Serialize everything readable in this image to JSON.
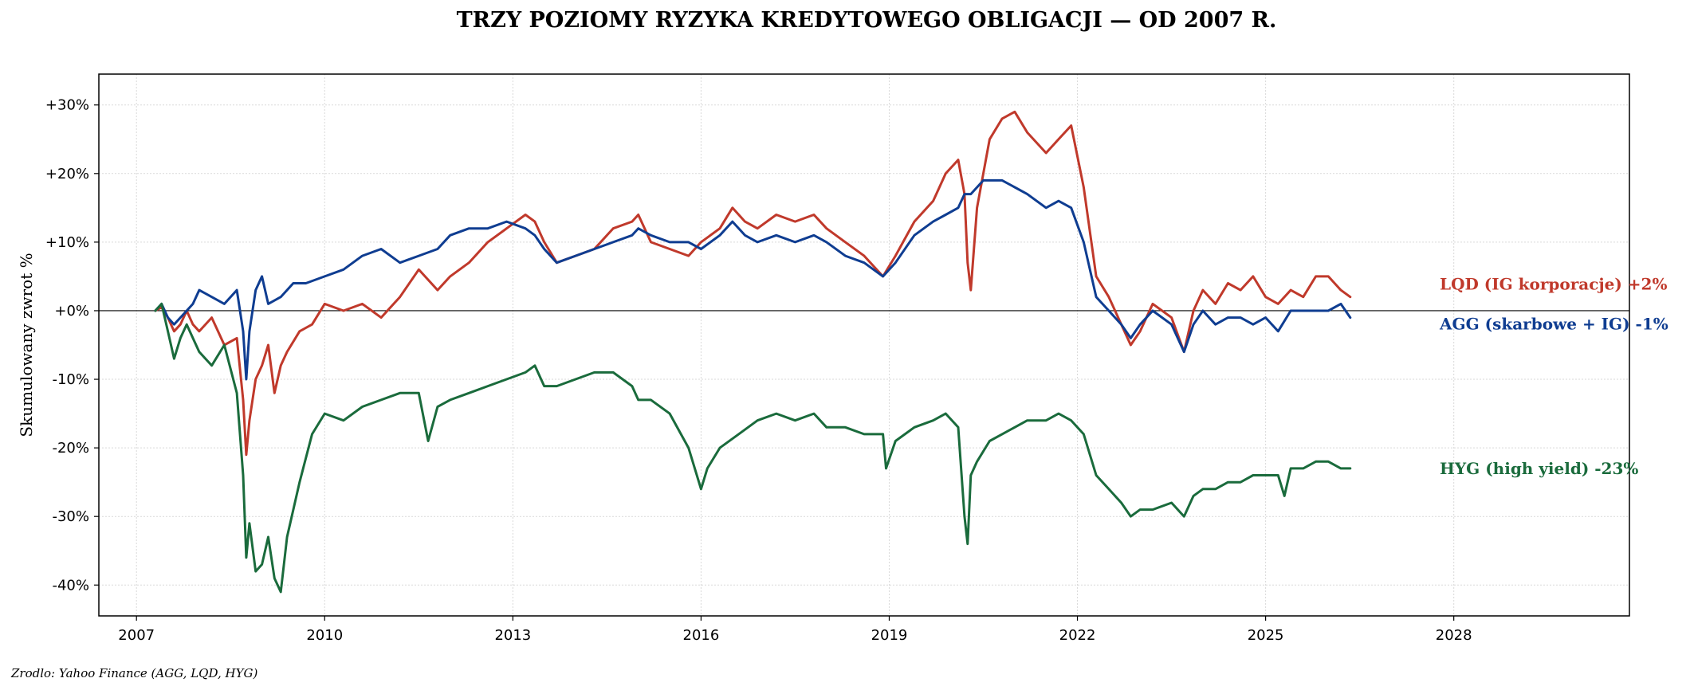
{
  "chart_data": {
    "type": "line",
    "title": "TRZY POZIOMY RYZYKA KREDYTOWEGO OBLIGACJI — OD 2007 R.",
    "ylabel": "Skumulowany zwrot %",
    "xlabel": "",
    "xlim": [
      2006.4,
      2030.8
    ],
    "ylim": [
      -44.5,
      34.5
    ],
    "x_ticks": [
      2007,
      2010,
      2013,
      2016,
      2019,
      2022,
      2025,
      2028
    ],
    "x_tick_labels": [
      "2007",
      "2010",
      "2013",
      "2016",
      "2019",
      "2022",
      "2025",
      "2028"
    ],
    "y_ticks": [
      30,
      20,
      10,
      0,
      -10,
      -20,
      -30,
      -40
    ],
    "y_tick_labels": [
      "+30%",
      "+20%",
      "+10%",
      "+0%",
      "-10%",
      "-20%",
      "-30%",
      "-40%"
    ],
    "grid": true,
    "zero_line": true,
    "series": [
      {
        "name": "LQD",
        "end_label": "LQD (IG korporacje)  +2%",
        "color": "#c0392b",
        "x": [
          2007.3,
          2007.4,
          2007.5,
          2007.6,
          2007.7,
          2007.8,
          2007.9,
          2008.0,
          2008.2,
          2008.4,
          2008.6,
          2008.7,
          2008.75,
          2008.8,
          2008.9,
          2009.0,
          2009.1,
          2009.2,
          2009.3,
          2009.4,
          2009.6,
          2009.8,
          2010.0,
          2010.3,
          2010.6,
          2010.9,
          2011.2,
          2011.5,
          2011.8,
          2012.0,
          2012.3,
          2012.6,
          2012.9,
          2013.2,
          2013.35,
          2013.5,
          2013.7,
          2014.0,
          2014.3,
          2014.6,
          2014.9,
          2015.0,
          2015.2,
          2015.5,
          2015.8,
          2016.0,
          2016.3,
          2016.5,
          2016.7,
          2016.9,
          2017.2,
          2017.5,
          2017.8,
          2018.0,
          2018.3,
          2018.6,
          2018.9,
          2019.1,
          2019.4,
          2019.7,
          2019.9,
          2020.1,
          2020.2,
          2020.25,
          2020.3,
          2020.4,
          2020.6,
          2020.8,
          2021.0,
          2021.2,
          2021.5,
          2021.7,
          2021.9,
          2022.1,
          2022.3,
          2022.5,
          2022.7,
          2022.85,
          2023.0,
          2023.2,
          2023.5,
          2023.7,
          2023.85,
          2024.0,
          2024.2,
          2024.4,
          2024.6,
          2024.8,
          2025.0,
          2025.2,
          2025.4,
          2025.6,
          2025.8,
          2026.0,
          2026.2,
          2026.35
        ],
        "y": [
          0,
          0.5,
          -1,
          -3,
          -2,
          0,
          -2,
          -3,
          -1,
          -5,
          -4,
          -13,
          -21,
          -16,
          -10,
          -8,
          -5,
          -12,
          -8,
          -6,
          -3,
          -2,
          1,
          0,
          1,
          -1,
          2,
          6,
          3,
          5,
          7,
          10,
          12,
          14,
          13,
          10,
          7,
          8,
          9,
          12,
          13,
          14,
          10,
          9,
          8,
          10,
          12,
          15,
          13,
          12,
          14,
          13,
          14,
          12,
          10,
          8,
          5,
          8,
          13,
          16,
          20,
          22,
          17,
          7,
          3,
          15,
          25,
          28,
          29,
          26,
          23,
          25,
          27,
          18,
          5,
          2,
          -2,
          -5,
          -3,
          1,
          -1,
          -6,
          0,
          3,
          1,
          4,
          3,
          5,
          2,
          1,
          3,
          2,
          5,
          5,
          3,
          2
        ]
      },
      {
        "name": "AGG",
        "end_label": "AGG (skarbowe + IG)  -1%",
        "color": "#0f3d91",
        "x": [
          2007.3,
          2007.4,
          2007.5,
          2007.6,
          2007.7,
          2007.8,
          2007.9,
          2008.0,
          2008.2,
          2008.4,
          2008.6,
          2008.7,
          2008.75,
          2008.8,
          2008.9,
          2009.0,
          2009.1,
          2009.3,
          2009.5,
          2009.7,
          2010.0,
          2010.3,
          2010.6,
          2010.9,
          2011.2,
          2011.5,
          2011.8,
          2012.0,
          2012.3,
          2012.6,
          2012.9,
          2013.2,
          2013.35,
          2013.5,
          2013.7,
          2014.0,
          2014.3,
          2014.6,
          2014.9,
          2015.0,
          2015.2,
          2015.5,
          2015.8,
          2016.0,
          2016.3,
          2016.5,
          2016.7,
          2016.9,
          2017.2,
          2017.5,
          2017.8,
          2018.0,
          2018.3,
          2018.6,
          2018.9,
          2019.1,
          2019.4,
          2019.7,
          2019.9,
          2020.1,
          2020.2,
          2020.3,
          2020.5,
          2020.8,
          2021.0,
          2021.2,
          2021.5,
          2021.7,
          2021.9,
          2022.1,
          2022.3,
          2022.5,
          2022.7,
          2022.85,
          2023.0,
          2023.2,
          2023.5,
          2023.7,
          2023.85,
          2024.0,
          2024.2,
          2024.4,
          2024.6,
          2024.8,
          2025.0,
          2025.2,
          2025.4,
          2025.6,
          2025.8,
          2026.0,
          2026.2,
          2026.35
        ],
        "y": [
          0,
          1,
          -1,
          -2,
          -1,
          0,
          1,
          3,
          2,
          1,
          3,
          -3,
          -10,
          -3,
          3,
          5,
          1,
          2,
          4,
          4,
          5,
          6,
          8,
          9,
          7,
          8,
          9,
          11,
          12,
          12,
          13,
          12,
          11,
          9,
          7,
          8,
          9,
          10,
          11,
          12,
          11,
          10,
          10,
          9,
          11,
          13,
          11,
          10,
          11,
          10,
          11,
          10,
          8,
          7,
          5,
          7,
          11,
          13,
          14,
          15,
          17,
          17,
          19,
          19,
          18,
          17,
          15,
          16,
          15,
          10,
          2,
          0,
          -2,
          -4,
          -2,
          0,
          -2,
          -6,
          -2,
          0,
          -2,
          -1,
          -1,
          -2,
          -1,
          -3,
          0,
          0,
          0,
          0,
          1,
          -1
        ]
      },
      {
        "name": "HYG",
        "end_label": "HYG (high yield)  -23%",
        "color": "#1a6b3c",
        "x": [
          2007.3,
          2007.4,
          2007.5,
          2007.6,
          2007.7,
          2007.8,
          2007.9,
          2008.0,
          2008.2,
          2008.4,
          2008.6,
          2008.7,
          2008.75,
          2008.8,
          2008.9,
          2009.0,
          2009.1,
          2009.2,
          2009.3,
          2009.4,
          2009.6,
          2009.8,
          2010.0,
          2010.3,
          2010.6,
          2010.9,
          2011.2,
          2011.5,
          2011.65,
          2011.8,
          2012.0,
          2012.3,
          2012.6,
          2012.9,
          2013.2,
          2013.35,
          2013.5,
          2013.7,
          2014.0,
          2014.3,
          2014.6,
          2014.9,
          2015.0,
          2015.2,
          2015.5,
          2015.8,
          2016.0,
          2016.1,
          2016.3,
          2016.6,
          2016.9,
          2017.2,
          2017.5,
          2017.8,
          2018.0,
          2018.3,
          2018.6,
          2018.9,
          2018.95,
          2019.1,
          2019.4,
          2019.7,
          2019.9,
          2020.1,
          2020.2,
          2020.25,
          2020.3,
          2020.4,
          2020.6,
          2020.8,
          2021.0,
          2021.2,
          2021.5,
          2021.7,
          2021.9,
          2022.1,
          2022.3,
          2022.5,
          2022.7,
          2022.85,
          2023.0,
          2023.2,
          2023.5,
          2023.7,
          2023.85,
          2024.0,
          2024.2,
          2024.4,
          2024.6,
          2024.8,
          2025.0,
          2025.2,
          2025.3,
          2025.4,
          2025.6,
          2025.8,
          2026.0,
          2026.2,
          2026.35
        ],
        "y": [
          0,
          1,
          -3,
          -7,
          -4,
          -2,
          -4,
          -6,
          -8,
          -5,
          -12,
          -24,
          -36,
          -31,
          -38,
          -37,
          -33,
          -39,
          -41,
          -33,
          -25,
          -18,
          -15,
          -16,
          -14,
          -13,
          -12,
          -12,
          -19,
          -14,
          -13,
          -12,
          -11,
          -10,
          -9,
          -8,
          -11,
          -11,
          -10,
          -9,
          -9,
          -11,
          -13,
          -13,
          -15,
          -20,
          -26,
          -23,
          -20,
          -18,
          -16,
          -15,
          -16,
          -15,
          -17,
          -17,
          -18,
          -18,
          -23,
          -19,
          -17,
          -16,
          -15,
          -17,
          -30,
          -34,
          -24,
          -22,
          -19,
          -18,
          -17,
          -16,
          -16,
          -15,
          -16,
          -18,
          -24,
          -26,
          -28,
          -30,
          -29,
          -29,
          -28,
          -30,
          -27,
          -26,
          -26,
          -25,
          -25,
          -24,
          -24,
          -24,
          -27,
          -23,
          -23,
          -22,
          -22,
          -23,
          -23
        ]
      }
    ]
  },
  "footer": {
    "source": "Zrodlo: Yahoo Finance (AGG, LQD, HYG)"
  }
}
